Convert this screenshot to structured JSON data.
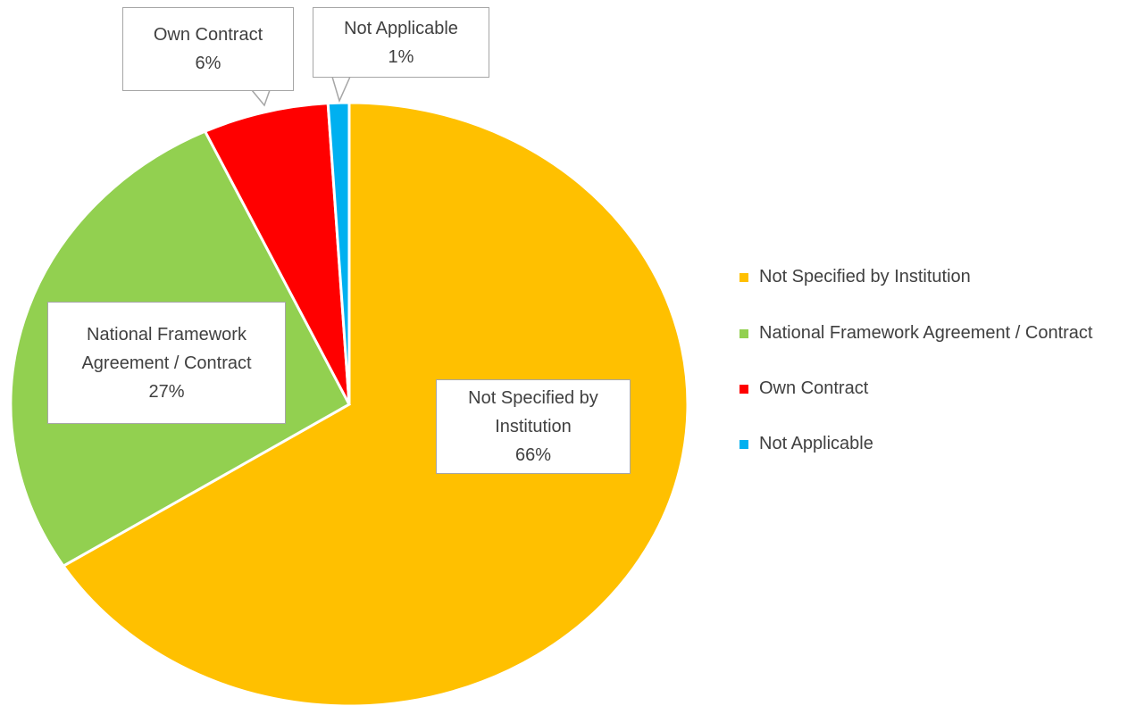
{
  "chart_data": {
    "type": "pie",
    "categories": [
      "Not Specified by Institution",
      "National Framework Agreement / Contract",
      "Own Contract",
      "Not Applicable"
    ],
    "values": [
      66,
      27,
      6,
      1
    ],
    "value_labels": [
      "66%",
      "27%",
      "6%",
      "1%"
    ],
    "colors": [
      "#ffc000",
      "#92d050",
      "#ff0000",
      "#00b0f0"
    ],
    "legend": "right"
  }
}
